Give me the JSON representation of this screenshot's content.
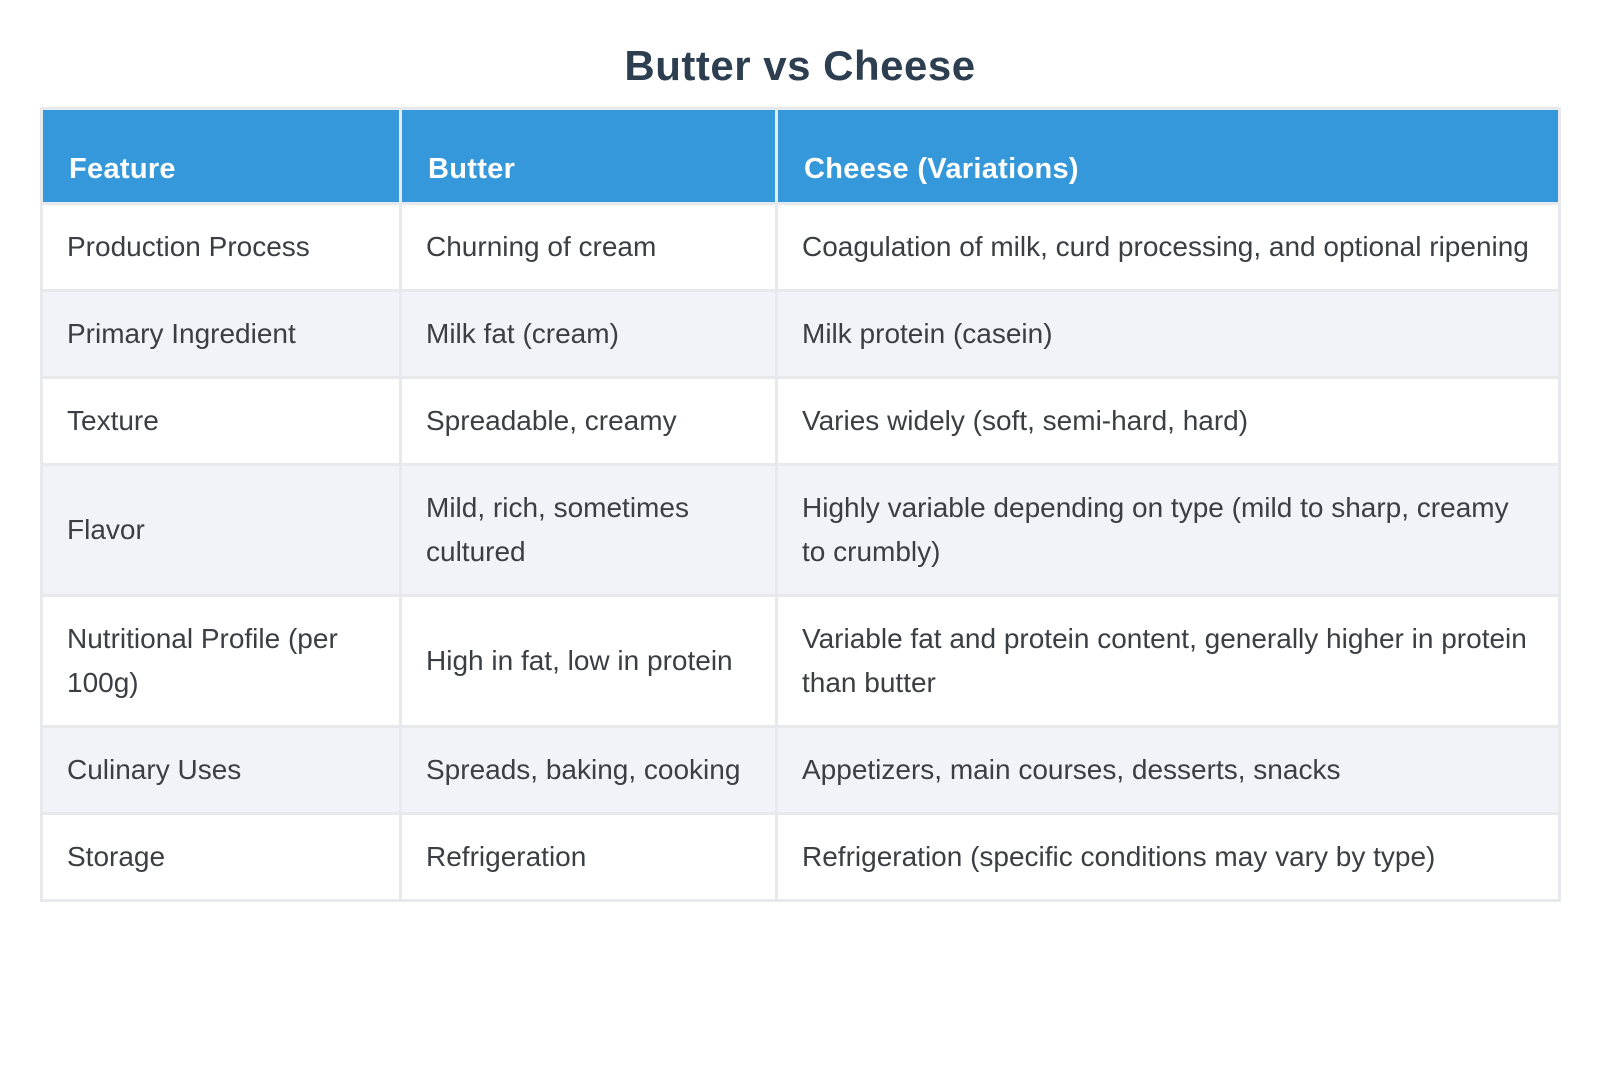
{
  "title": "Butter vs Cheese",
  "table": {
    "columns": [
      "Feature",
      "Butter",
      "Cheese (Variations)"
    ],
    "rows": [
      {
        "feature": "Production Process",
        "butter": "Churning of cream",
        "cheese": "Coagulation of milk, curd processing, and optional ripening"
      },
      {
        "feature": "Primary Ingredient",
        "butter": "Milk fat (cream)",
        "cheese": "Milk protein (casein)"
      },
      {
        "feature": "Texture",
        "butter": "Spreadable, creamy",
        "cheese": "Varies widely (soft, semi-hard, hard)"
      },
      {
        "feature": "Flavor",
        "butter": "Mild, rich, sometimes cultured",
        "cheese": "Highly variable depending on type (mild to sharp, creamy to crumbly)"
      },
      {
        "feature": "Nutritional Profile (per 100g)",
        "butter": "High in fat, low in protein",
        "cheese": "Variable fat and protein content, generally higher in protein than butter"
      },
      {
        "feature": "Culinary Uses",
        "butter": "Spreads, baking, cooking",
        "cheese": "Appetizers, main courses, desserts, snacks"
      },
      {
        "feature": "Storage",
        "butter": "Refrigeration",
        "cheese": "Refrigeration (specific conditions may vary by type)"
      }
    ]
  },
  "colors": {
    "header_bg": "#3598db",
    "header_text": "#ffffff",
    "title_text": "#2c3e50",
    "body_text": "#3b3e42",
    "stripe_bg": "#f0f3f7",
    "row_bg": "#ffffff",
    "grid": "#e7e9ec"
  }
}
